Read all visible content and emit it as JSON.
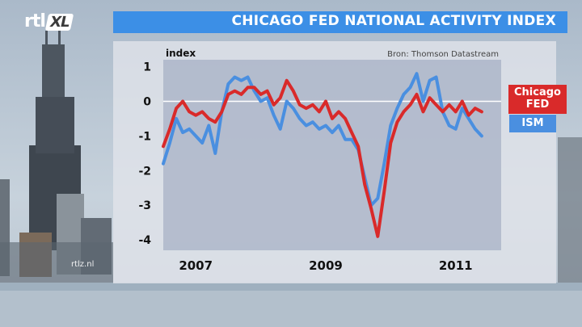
{
  "brand": {
    "logo_text": "rtl",
    "logo_badge": "XL",
    "watermark": "rtlz.nl"
  },
  "header": {
    "title": "CHICAGO FED NATIONAL ACTIVITY INDEX"
  },
  "colors": {
    "red": "#d92a2a",
    "blue": "#4a8fe0",
    "title_bar": "#3c8fe6"
  },
  "chart_data": {
    "type": "line",
    "title": "CHICAGO FED NATIONAL ACTIVITY INDEX",
    "ylabel": "index",
    "source": "Bron: Thomson Datastream",
    "ylim": [
      -4.3,
      1.2
    ],
    "xlim": [
      2006.5,
      2011.7
    ],
    "y_ticks": [
      {
        "value": 1,
        "label": "1"
      },
      {
        "value": 0,
        "label": "0"
      },
      {
        "value": -1,
        "label": "-1"
      },
      {
        "value": -2,
        "label": "-2"
      },
      {
        "value": -3,
        "label": "-3"
      },
      {
        "value": -4,
        "label": "-4"
      }
    ],
    "x_ticks": [
      {
        "value": 2007,
        "label": "2007"
      },
      {
        "value": 2009,
        "label": "2009"
      },
      {
        "value": 2011,
        "label": "2011"
      }
    ],
    "zero_line": true,
    "series": [
      {
        "name": "Chicago FED",
        "color": "#d92a2a",
        "x": [
          2006.5,
          2006.6,
          2006.7,
          2006.8,
          2006.9,
          2007.0,
          2007.1,
          2007.2,
          2007.3,
          2007.4,
          2007.5,
          2007.6,
          2007.7,
          2007.8,
          2007.9,
          2008.0,
          2008.1,
          2008.2,
          2008.3,
          2008.4,
          2008.5,
          2008.6,
          2008.7,
          2008.8,
          2008.9,
          2009.0,
          2009.1,
          2009.2,
          2009.3,
          2009.4,
          2009.5,
          2009.6,
          2009.7,
          2009.8,
          2009.9,
          2010.0,
          2010.1,
          2010.2,
          2010.3,
          2010.4,
          2010.5,
          2010.6,
          2010.7,
          2010.8,
          2010.9,
          2011.0,
          2011.1,
          2011.2,
          2011.3,
          2011.4
        ],
        "y": [
          -1.3,
          -0.8,
          -0.2,
          0.0,
          -0.3,
          -0.4,
          -0.3,
          -0.5,
          -0.6,
          -0.3,
          0.2,
          0.3,
          0.2,
          0.4,
          0.4,
          0.2,
          0.3,
          -0.1,
          0.1,
          0.6,
          0.3,
          -0.1,
          -0.2,
          -0.1,
          -0.3,
          0.0,
          -0.5,
          -0.3,
          -0.5,
          -0.9,
          -1.3,
          -2.4,
          -3.1,
          -3.9,
          -2.6,
          -1.2,
          -0.6,
          -0.3,
          -0.1,
          0.2,
          -0.3,
          0.1,
          -0.1,
          -0.3,
          -0.1,
          -0.3,
          0.0,
          -0.4,
          -0.2,
          -0.3
        ]
      },
      {
        "name": "ISM",
        "color": "#4a8fe0",
        "x": [
          2006.5,
          2006.6,
          2006.7,
          2006.8,
          2006.9,
          2007.0,
          2007.1,
          2007.2,
          2007.3,
          2007.4,
          2007.5,
          2007.6,
          2007.7,
          2007.8,
          2007.9,
          2008.0,
          2008.1,
          2008.2,
          2008.3,
          2008.4,
          2008.5,
          2008.6,
          2008.7,
          2008.8,
          2008.9,
          2009.0,
          2009.1,
          2009.2,
          2009.3,
          2009.4,
          2009.5,
          2009.6,
          2009.7,
          2009.8,
          2009.9,
          2010.0,
          2010.1,
          2010.2,
          2010.3,
          2010.4,
          2010.5,
          2010.6,
          2010.7,
          2010.8,
          2010.9,
          2011.0,
          2011.1,
          2011.2,
          2011.3,
          2011.4
        ],
        "y": [
          -1.8,
          -1.2,
          -0.5,
          -0.9,
          -0.8,
          -1.0,
          -1.2,
          -0.7,
          -1.5,
          -0.3,
          0.5,
          0.7,
          0.6,
          0.7,
          0.3,
          0.0,
          0.1,
          -0.4,
          -0.8,
          0.0,
          -0.2,
          -0.5,
          -0.7,
          -0.6,
          -0.8,
          -0.7,
          -0.9,
          -0.7,
          -1.1,
          -1.1,
          -1.4,
          -2.2,
          -3.0,
          -2.8,
          -1.8,
          -0.7,
          -0.2,
          0.2,
          0.4,
          0.8,
          0.0,
          0.6,
          0.7,
          -0.3,
          -0.7,
          -0.8,
          -0.2,
          -0.5,
          -0.8,
          -1.0
        ]
      }
    ],
    "legend": [
      {
        "label_line1": "Chicago",
        "label_line2": "FED",
        "color": "#d92a2a"
      },
      {
        "label_line1": "ISM",
        "label_line2": "",
        "color": "#4a8fe0"
      }
    ]
  }
}
